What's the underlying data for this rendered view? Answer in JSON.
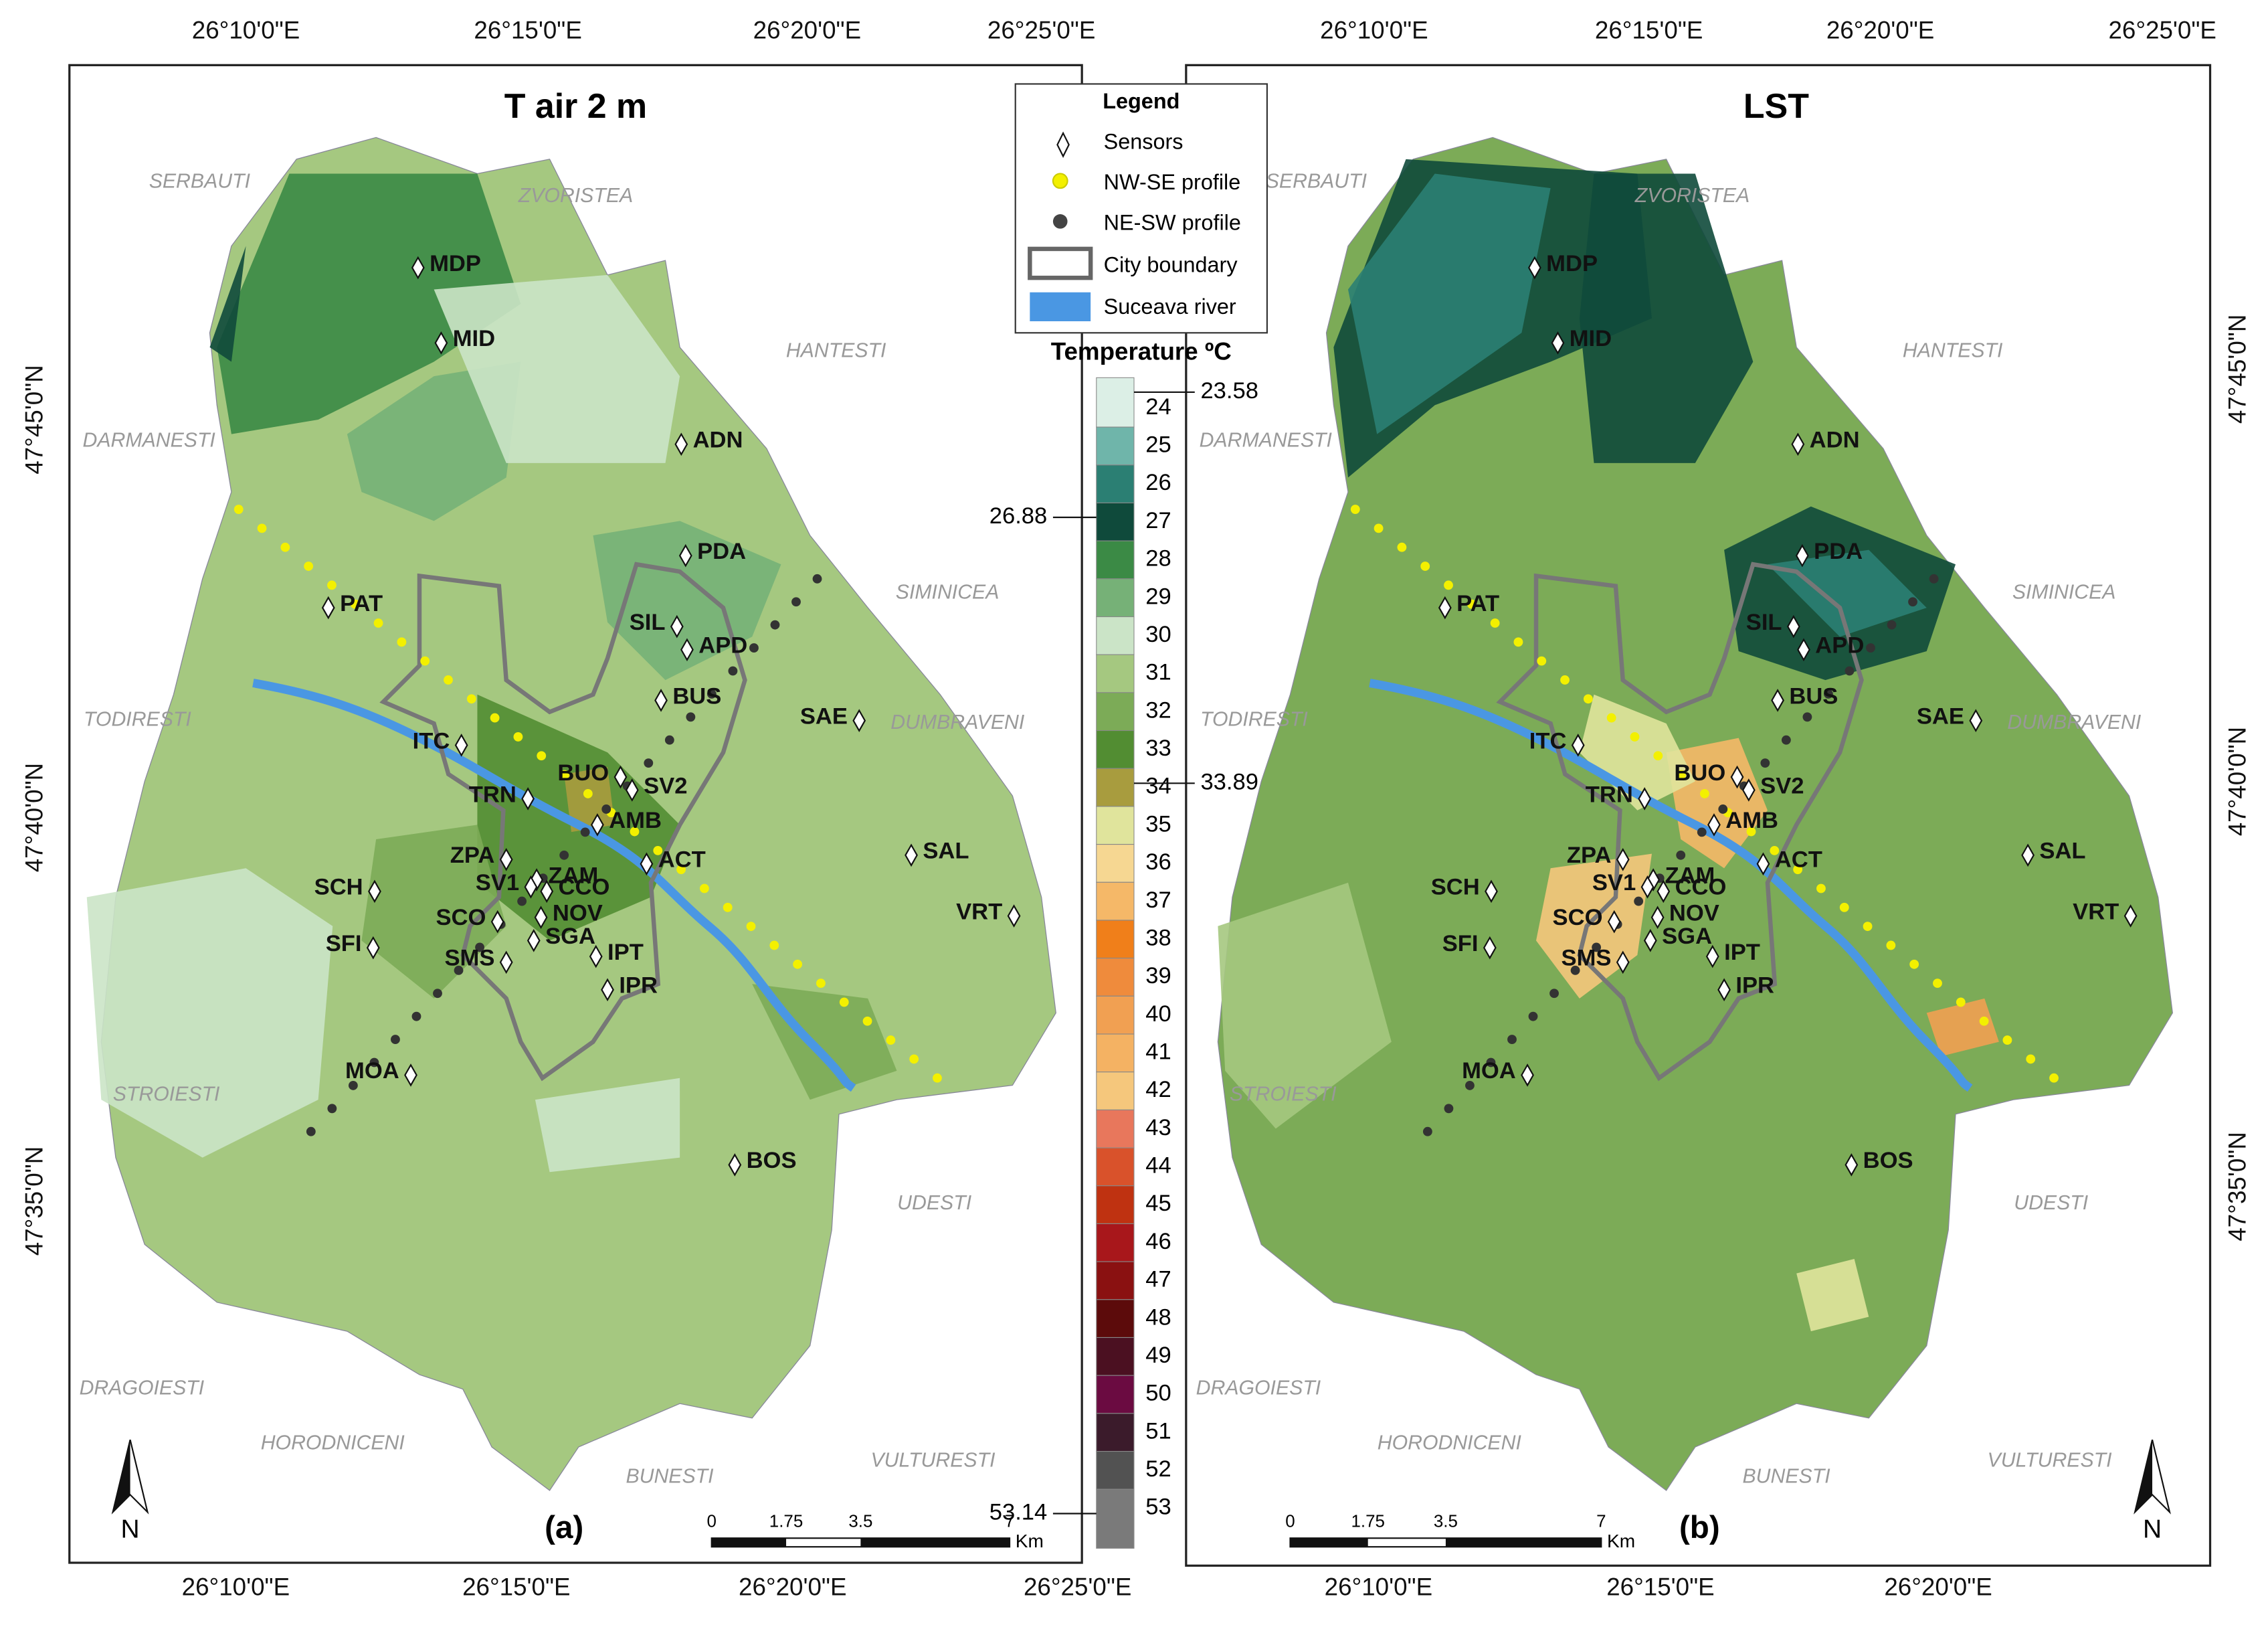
{
  "panels": [
    {
      "title": "T air 2 m",
      "label": "(a)"
    },
    {
      "title": "LST",
      "label": "(b)"
    }
  ],
  "lon_labels": [
    "26°10'0\"E",
    "26°15'0\"E",
    "26°20'0\"E",
    "26°25'0\"E"
  ],
  "lat_labels": [
    "47°45'0\"N",
    "47°40'0\"N",
    "47°35'0\"N"
  ],
  "places": [
    "SERBAUTI",
    "ZVORISTEA",
    "HANTESTI",
    "DARMANESTI",
    "SIMINICEA",
    "TODIRESTI",
    "DUMBRAVENI",
    "STROIESTI",
    "UDESTI",
    "DRAGOIESTI",
    "HORODNICENI",
    "BUNESTI",
    "VULTURESTI"
  ],
  "sensors": [
    "MDP",
    "MID",
    "ADN",
    "PDA",
    "PAT",
    "SIL",
    "APD",
    "BUS",
    "SAE",
    "ITC",
    "BUO",
    "SV2",
    "TRN",
    "AMB",
    "ACT",
    "SAL",
    "ZPA",
    "ZAM",
    "SCH",
    "SV1",
    "CCO",
    "VRT",
    "NOV",
    "SCO",
    "SFI",
    "SGA",
    "IPT",
    "SMS",
    "IPR",
    "MOA",
    "BOS"
  ],
  "legend": {
    "title": "Legend",
    "items": [
      "Sensors",
      "NW-SE profile",
      "NE-SW profile",
      "City boundary",
      "Suceava river"
    ]
  },
  "colorbar": {
    "title": "Temperature ºC",
    "ticks": [
      24,
      25,
      26,
      27,
      28,
      29,
      30,
      31,
      32,
      33,
      34,
      35,
      36,
      37,
      38,
      39,
      40,
      41,
      42,
      43,
      44,
      45,
      46,
      47,
      48,
      49,
      50,
      51,
      52,
      53
    ],
    "colors": [
      "#dcefe6",
      "#6fb5aa",
      "#2b7f73",
      "#0f4a3b",
      "#3b8a45",
      "#76b177",
      "#cbe4c7",
      "#a5c880",
      "#7cab57",
      "#528d32",
      "#a89c3e",
      "#e0e49c",
      "#f6d792",
      "#f5b868",
      "#f07f1a",
      "#ef8b3c",
      "#f1a052",
      "#f4b263",
      "#f5c77c",
      "#e8775c",
      "#d9522b",
      "#bf3211",
      "#a8171b",
      "#8a1111",
      "#5c0b0b",
      "#4b1021",
      "#6b0b41",
      "#3b1b2b",
      "#525252",
      "#7a7a7a"
    ],
    "markers": [
      23.58,
      26.88,
      33.89,
      53.14
    ]
  },
  "scale_bar": {
    "values": [
      0,
      1.75,
      3.5,
      7
    ],
    "unit": "Km"
  },
  "north": "N"
}
